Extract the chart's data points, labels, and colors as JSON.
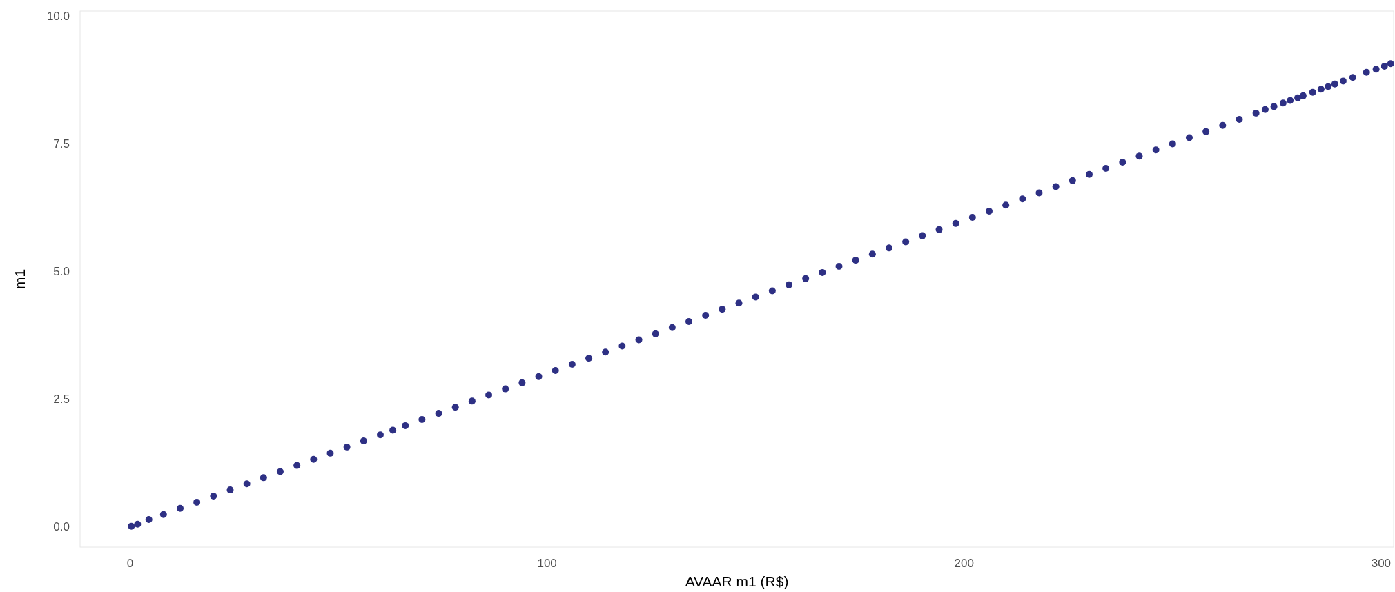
{
  "chart_data": {
    "type": "scatter",
    "xlabel": "AVAAR m1 (R$)",
    "ylabel": "m1",
    "xlim": [
      -12,
      303
    ],
    "ylim": [
      -0.4,
      10.1
    ],
    "xticks": [
      0,
      100,
      200,
      300
    ],
    "yticks": [
      {
        "value": 0,
        "label": "0.0"
      },
      {
        "value": 2.5,
        "label": "2.5"
      },
      {
        "value": 5,
        "label": "5.0"
      },
      {
        "value": 7.5,
        "label": "7.5"
      },
      {
        "value": 10,
        "label": "10.0"
      }
    ],
    "grid": false,
    "marker": "circle",
    "series": [
      {
        "color": "#2e3084",
        "x": [
          0.3,
          1.8,
          4.5,
          8,
          12,
          16,
          20,
          24,
          28,
          32,
          36,
          40,
          44,
          48,
          52,
          56,
          60,
          63,
          66,
          70,
          74,
          78,
          82,
          86,
          90,
          94,
          98,
          102,
          106,
          110,
          114,
          118,
          122,
          126,
          130,
          134,
          138,
          142,
          146,
          150,
          154,
          158,
          162,
          166,
          170,
          174,
          178,
          182,
          186,
          190,
          194,
          198,
          202,
          206,
          210,
          214,
          218,
          222,
          226,
          230,
          234,
          238,
          242,
          246,
          250,
          254,
          258,
          262,
          266,
          270,
          272.2,
          274.3,
          276.5,
          278.2,
          280,
          281.3,
          283.6,
          285.6,
          287.3,
          288.9,
          290.9,
          293.2,
          296.5,
          298.8,
          300.8,
          302.3
        ],
        "values": [
          0.01,
          0.05,
          0.14,
          0.24,
          0.36,
          0.48,
          0.6,
          0.72,
          0.84,
          0.96,
          1.08,
          1.2,
          1.32,
          1.44,
          1.56,
          1.68,
          1.8,
          1.89,
          1.98,
          2.1,
          2.22,
          2.34,
          2.46,
          2.58,
          2.7,
          2.82,
          2.94,
          3.06,
          3.18,
          3.3,
          3.42,
          3.54,
          3.66,
          3.78,
          3.9,
          4.02,
          4.14,
          4.26,
          4.38,
          4.5,
          4.62,
          4.74,
          4.86,
          4.98,
          5.1,
          5.22,
          5.34,
          5.46,
          5.58,
          5.7,
          5.82,
          5.94,
          6.06,
          6.18,
          6.3,
          6.42,
          6.54,
          6.66,
          6.78,
          6.9,
          7.02,
          7.14,
          7.26,
          7.38,
          7.5,
          7.62,
          7.74,
          7.86,
          7.98,
          8.1,
          8.17,
          8.23,
          8.3,
          8.35,
          8.4,
          8.44,
          8.51,
          8.57,
          8.62,
          8.67,
          8.73,
          8.8,
          8.9,
          8.96,
          9.02,
          9.07
        ]
      }
    ]
  }
}
